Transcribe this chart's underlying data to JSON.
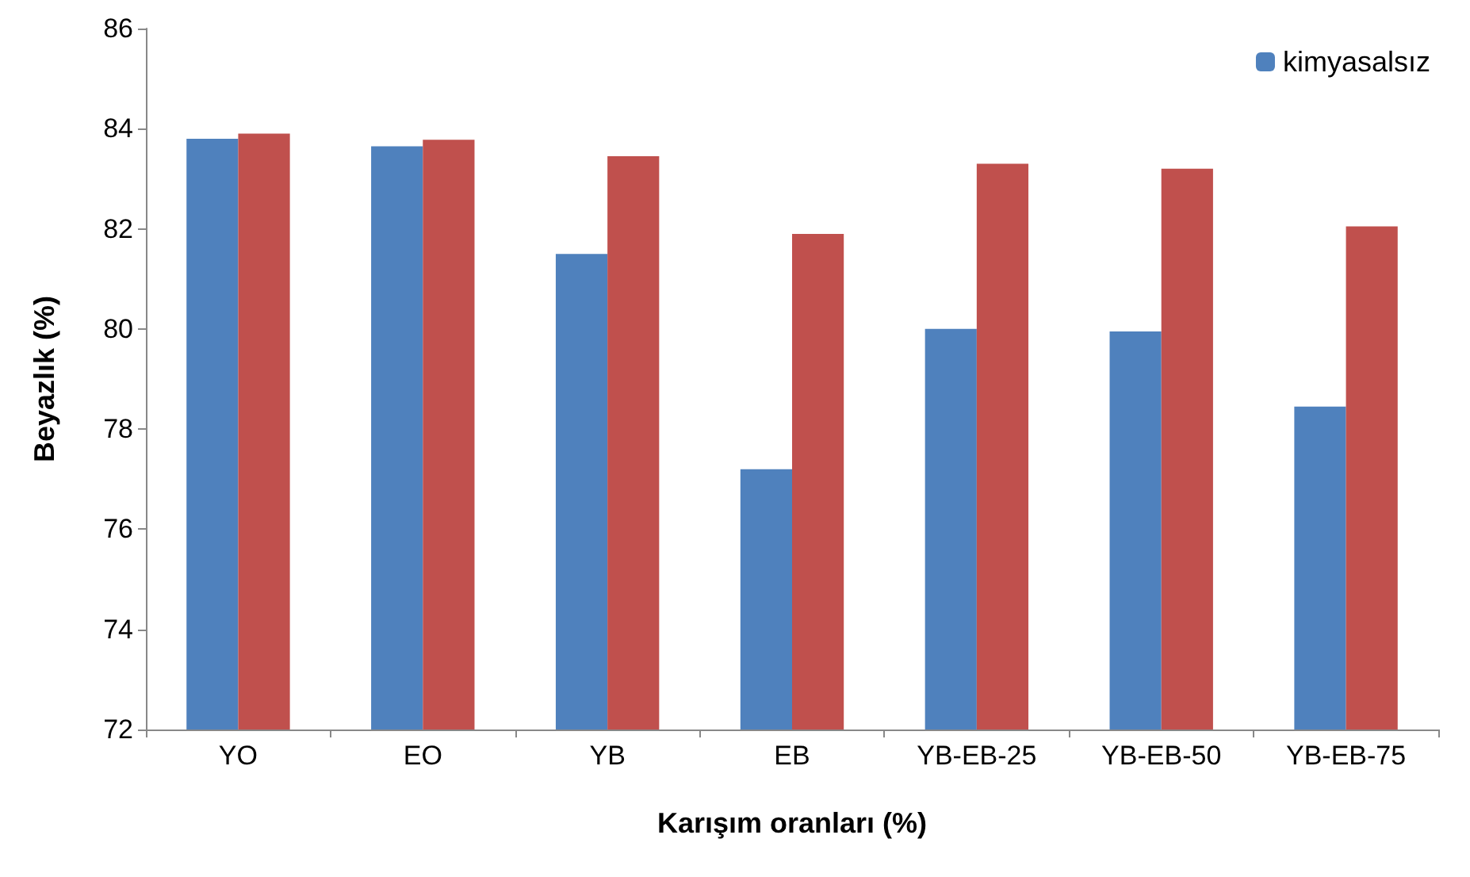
{
  "chart_data": {
    "type": "bar",
    "xlabel": "Karışım oranları (%)",
    "ylabel": "Beyazlık (%)",
    "categories": [
      "YO",
      "EO",
      "YB",
      "EB",
      "YB-EB-25",
      "YB-EB-50",
      "YB-EB-75"
    ],
    "series": [
      {
        "name": "kimyasalsız",
        "color": "#4f81bd",
        "values": [
          83.8,
          83.65,
          81.5,
          77.2,
          80.0,
          79.95,
          78.45
        ]
      },
      {
        "color": "#c0504d",
        "values": [
          83.9,
          83.78,
          83.45,
          81.9,
          83.3,
          83.2,
          82.05
        ]
      }
    ],
    "ylim": [
      72,
      86
    ],
    "yticks": [
      72,
      74,
      76,
      78,
      80,
      82,
      84,
      86
    ],
    "grid": false,
    "legend": "top right"
  }
}
